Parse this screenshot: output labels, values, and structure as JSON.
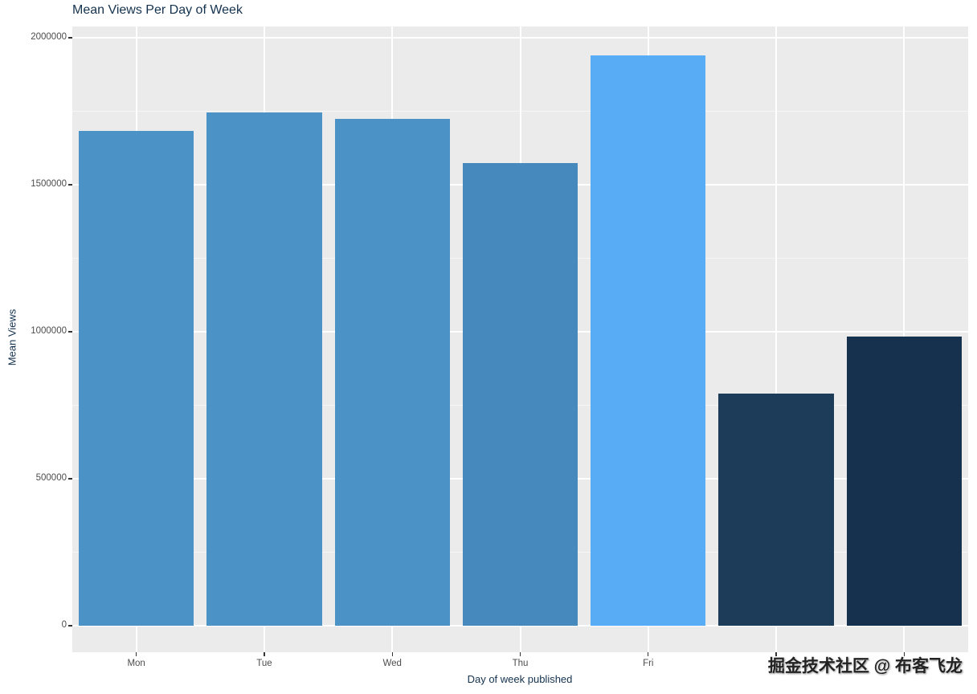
{
  "watermark": "掘金技术社区 @ 布客飞龙",
  "chart_data": {
    "type": "bar",
    "title": "Mean Views Per Day of Week",
    "xlabel": "Day of week published",
    "ylabel": "Mean Views",
    "ylim": [
      0,
      2000000
    ],
    "yticks": [
      0,
      500000,
      1000000,
      1500000,
      2000000
    ],
    "ytick_labels": [
      "0",
      "500000",
      "1000000",
      "1500000",
      "2000000"
    ],
    "minor_gridlines": [
      250000,
      750000,
      1250000,
      1750000
    ],
    "grid": true,
    "legend": false,
    "panel_background": "#ebebeb",
    "grid_color": "#ffffff",
    "categories": [
      "Mon",
      "Tue",
      "Wed",
      "Thu",
      "Fri",
      "",
      ""
    ],
    "bars": [
      {
        "label": "Mon",
        "value": 1683000,
        "color": "#4b93c6"
      },
      {
        "label": "Tue",
        "value": 1746000,
        "color": "#4b93c6"
      },
      {
        "label": "Wed",
        "value": 1724000,
        "color": "#4b93c6"
      },
      {
        "label": "Thu",
        "value": 1574000,
        "color": "#4689bd"
      },
      {
        "label": "Fri",
        "value": 1940000,
        "color": "#57acf5"
      },
      {
        "label": "",
        "value": 790000,
        "color": "#1d3c59"
      },
      {
        "label": "",
        "value": 984000,
        "color": "#15314d"
      }
    ]
  }
}
